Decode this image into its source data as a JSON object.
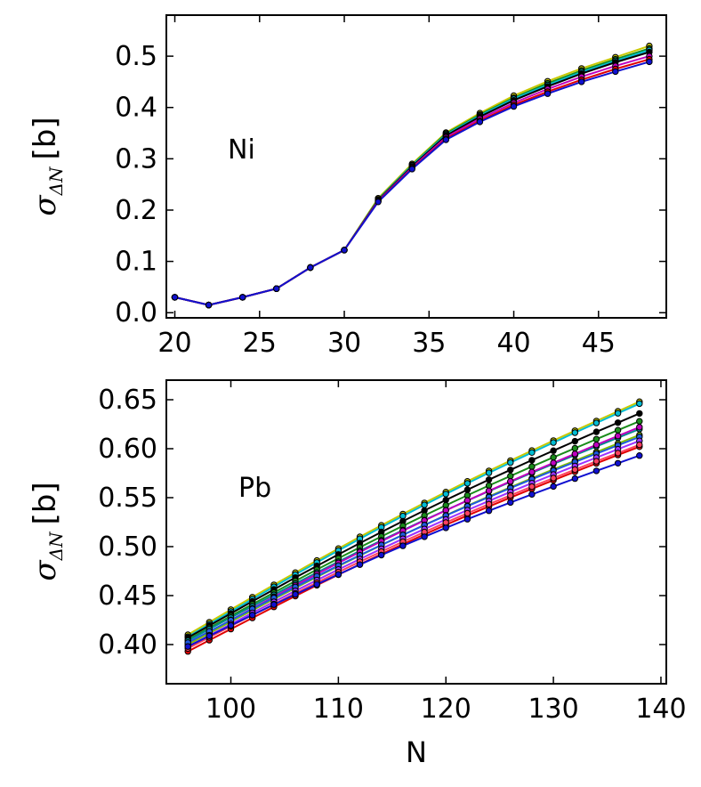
{
  "chart_data": [
    {
      "type": "line",
      "panel": "top",
      "annotation": "Ni",
      "ylabel_symbol": "σ",
      "ylabel_subscript": "ΔN",
      "ylabel_unit": "[b]",
      "xlabel": "",
      "xlim": [
        19.5,
        49
      ],
      "ylim": [
        -0.01,
        0.58
      ],
      "xticks": [
        20,
        25,
        30,
        35,
        40,
        45
      ],
      "xtick_labels": [
        "20",
        "25",
        "30",
        "35",
        "40",
        "45"
      ],
      "yticks": [
        0.0,
        0.1,
        0.2,
        0.3,
        0.4,
        0.5
      ],
      "ytick_labels": [
        "0.0",
        "0.1",
        "0.2",
        "0.3",
        "0.4",
        "0.5"
      ],
      "x": [
        20,
        22,
        24,
        26,
        28,
        30,
        32,
        34,
        36,
        38,
        40,
        42,
        44,
        46,
        48
      ],
      "series": [
        {
          "name": "yellow",
          "color": "#c8c800",
          "values": [
            0.03,
            0.015,
            0.03,
            0.047,
            0.088,
            0.122,
            0.223,
            0.29,
            0.351,
            0.389,
            0.423,
            0.451,
            0.476,
            0.498,
            0.52
          ]
        },
        {
          "name": "green",
          "color": "#1a8c1a",
          "values": [
            0.03,
            0.015,
            0.03,
            0.047,
            0.088,
            0.122,
            0.221,
            0.288,
            0.349,
            0.386,
            0.419,
            0.447,
            0.472,
            0.494,
            0.515
          ]
        },
        {
          "name": "cyan",
          "color": "#00bcd4",
          "values": [
            0.03,
            0.015,
            0.03,
            0.047,
            0.088,
            0.122,
            0.22,
            0.287,
            0.347,
            0.384,
            0.417,
            0.444,
            0.469,
            0.491,
            0.512
          ]
        },
        {
          "name": "black",
          "color": "#000000",
          "values": [
            0.03,
            0.015,
            0.03,
            0.047,
            0.088,
            0.122,
            0.219,
            0.285,
            0.345,
            0.382,
            0.414,
            0.441,
            0.466,
            0.488,
            0.508
          ]
        },
        {
          "name": "magenta",
          "color": "#bf00bf",
          "values": [
            0.03,
            0.015,
            0.03,
            0.047,
            0.088,
            0.122,
            0.218,
            0.283,
            0.342,
            0.378,
            0.409,
            0.436,
            0.46,
            0.481,
            0.5
          ]
        },
        {
          "name": "red",
          "color": "#e00000",
          "values": [
            0.03,
            0.015,
            0.03,
            0.047,
            0.088,
            0.122,
            0.217,
            0.281,
            0.339,
            0.374,
            0.405,
            0.431,
            0.454,
            0.475,
            0.494
          ]
        },
        {
          "name": "blue",
          "color": "#1010d0",
          "values": [
            0.03,
            0.015,
            0.03,
            0.047,
            0.088,
            0.122,
            0.216,
            0.28,
            0.337,
            0.372,
            0.402,
            0.427,
            0.45,
            0.47,
            0.489
          ]
        }
      ]
    },
    {
      "type": "line",
      "panel": "bottom",
      "annotation": "Pb",
      "ylabel_symbol": "σ",
      "ylabel_subscript": "ΔN",
      "ylabel_unit": "[b]",
      "xlabel": "N",
      "xlim": [
        94,
        140.5
      ],
      "ylim": [
        0.36,
        0.67
      ],
      "xticks": [
        100,
        110,
        120,
        130,
        140
      ],
      "xtick_labels": [
        "100",
        "110",
        "120",
        "130",
        "140"
      ],
      "yticks": [
        0.4,
        0.45,
        0.5,
        0.55,
        0.6,
        0.65
      ],
      "ytick_labels": [
        "0.40",
        "0.45",
        "0.50",
        "0.55",
        "0.60",
        "0.65"
      ],
      "x": [
        96,
        98,
        100,
        102,
        104,
        106,
        108,
        110,
        112,
        114,
        116,
        118,
        120,
        122,
        124,
        126,
        128,
        130,
        132,
        134,
        136,
        138
      ],
      "series": [
        {
          "name": "yellow",
          "color": "#c8c800",
          "start": 0.41,
          "end": 0.648
        },
        {
          "name": "cyan",
          "color": "#00bcd4",
          "start": 0.408,
          "end": 0.646
        },
        {
          "name": "black",
          "color": "#000000",
          "start": 0.407,
          "end": 0.636
        },
        {
          "name": "green",
          "color": "#1a8c1a",
          "start": 0.405,
          "end": 0.628
        },
        {
          "name": "teal",
          "color": "#008b8b",
          "start": 0.404,
          "end": 0.62
        },
        {
          "name": "magenta",
          "color": "#bf00bf",
          "start": 0.401,
          "end": 0.622
        },
        {
          "name": "lime",
          "color": "#7fbf00",
          "start": 0.4,
          "end": 0.614
        },
        {
          "name": "blue2",
          "color": "#1e5ae0",
          "start": 0.402,
          "end": 0.612
        },
        {
          "name": "violet",
          "color": "#9b30ff",
          "start": 0.398,
          "end": 0.608
        },
        {
          "name": "red",
          "color": "#e00000",
          "start": 0.393,
          "end": 0.602
        },
        {
          "name": "salmon",
          "color": "#ff4060",
          "start": 0.396,
          "end": 0.604
        },
        {
          "name": "blue",
          "color": "#1010d0",
          "start": 0.398,
          "end": 0.593
        }
      ]
    }
  ]
}
